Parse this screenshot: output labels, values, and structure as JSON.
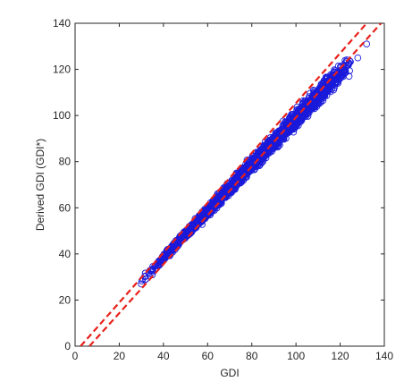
{
  "chart_data": {
    "type": "scatter",
    "title": "",
    "xlabel": "GDI",
    "ylabel": "Derived GDI (GDI*)",
    "xlim": [
      0,
      140
    ],
    "ylim": [
      0,
      140
    ],
    "xticks": [
      "0",
      "20",
      "40",
      "60",
      "80",
      "100",
      "120",
      "140"
    ],
    "yticks": [
      "0",
      "20",
      "40",
      "60",
      "80",
      "100",
      "120",
      "140"
    ],
    "grid": false,
    "legend": "none",
    "marker": "open-circle",
    "colors": {
      "points": "#1a1adb",
      "lines": "#e8201a",
      "axes": "#262626"
    },
    "scatter": {
      "x_range": [
        30,
        132
      ],
      "relation": "y ≈ 1.0·x − 1.5",
      "spread_min": 1.0,
      "spread_max": 3.5,
      "sample": [
        [
          30,
          27
        ],
        [
          32,
          29
        ],
        [
          35,
          31
        ],
        [
          38,
          35
        ],
        [
          40,
          38
        ],
        [
          42,
          40
        ],
        [
          45,
          43
        ],
        [
          48,
          46
        ],
        [
          50,
          48
        ],
        [
          52,
          50
        ],
        [
          55,
          53
        ],
        [
          58,
          56
        ],
        [
          60,
          58
        ],
        [
          62,
          61
        ],
        [
          65,
          63
        ],
        [
          68,
          66
        ],
        [
          70,
          69
        ],
        [
          72,
          71
        ],
        [
          75,
          73
        ],
        [
          78,
          76
        ],
        [
          80,
          79
        ],
        [
          82,
          80
        ],
        [
          85,
          84
        ],
        [
          88,
          86
        ],
        [
          90,
          89
        ],
        [
          92,
          91
        ],
        [
          95,
          93
        ],
        [
          98,
          96
        ],
        [
          100,
          99
        ],
        [
          102,
          100
        ],
        [
          105,
          103
        ],
        [
          108,
          106
        ],
        [
          110,
          109
        ],
        [
          112,
          110
        ],
        [
          115,
          112
        ],
        [
          118,
          116
        ],
        [
          120,
          118
        ],
        [
          124,
          117
        ],
        [
          128,
          125
        ],
        [
          132,
          131
        ]
      ]
    },
    "lines": [
      {
        "style": "dashed",
        "x": [
          2.5,
          132
        ],
        "y": [
          0,
          140
        ]
      },
      {
        "style": "dashed",
        "x": [
          6.5,
          138.5
        ],
        "y": [
          0,
          140
        ]
      }
    ]
  }
}
